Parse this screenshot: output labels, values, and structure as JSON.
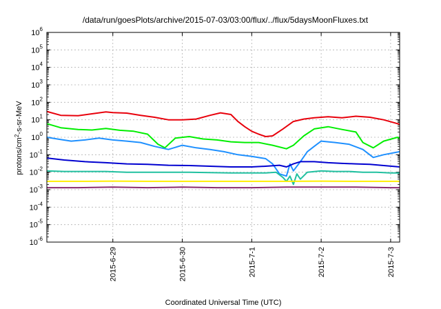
{
  "chart_data": {
    "type": "line",
    "title": "/data/run/goesPlots/archive/2015-07-03/03:00/flux/../flux/5daysMoonFluxes.txt",
    "xlabel": "Coordinated Universal Time (UTC)",
    "ylabel_parts": [
      "protons/cm",
      "2",
      "-s-sr-MeV"
    ],
    "y_scale": "log",
    "ylim_exp": [
      -6,
      6
    ],
    "y_ticks": [
      {
        "base": "10",
        "exp": "6",
        "e": 6
      },
      {
        "base": "10",
        "exp": "5",
        "e": 5
      },
      {
        "base": "10",
        "exp": "4",
        "e": 4
      },
      {
        "base": "10",
        "exp": "3",
        "e": 3
      },
      {
        "base": "10",
        "exp": "2",
        "e": 2
      },
      {
        "base": "10",
        "exp": "1",
        "e": 1
      },
      {
        "base": "10",
        "exp": "0",
        "e": 0
      },
      {
        "base": "10",
        "exp": "-1",
        "e": -1
      },
      {
        "base": "10",
        "exp": "-2",
        "e": -2
      },
      {
        "base": "10",
        "exp": "-3",
        "e": -3
      },
      {
        "base": "10",
        "exp": "-4",
        "e": -4
      },
      {
        "base": "10",
        "exp": "-5",
        "e": -5
      },
      {
        "base": "10",
        "exp": "-6",
        "e": -6
      }
    ],
    "xlim_days": [
      -0.95,
      4.13
    ],
    "x_ticks": [
      {
        "label": "2015-6-29",
        "day": 0
      },
      {
        "label": "2015-6-30",
        "day": 1
      },
      {
        "label": "2015-7-1",
        "day": 2
      },
      {
        "label": "2015-7-2",
        "day": 3
      },
      {
        "label": "2015-7-3",
        "day": 4
      }
    ],
    "grid": true,
    "series": [
      {
        "color": "#e8000b",
        "x": [
          -0.95,
          -0.75,
          -0.5,
          -0.3,
          -0.1,
          0.0,
          0.2,
          0.4,
          0.6,
          0.8,
          1.0,
          1.2,
          1.4,
          1.55,
          1.7,
          1.8,
          1.9,
          2.0,
          2.1,
          2.2,
          2.3,
          2.45,
          2.6,
          2.75,
          2.9,
          3.1,
          3.3,
          3.5,
          3.7,
          3.9,
          4.1,
          4.13
        ],
        "y": [
          30,
          18,
          17,
          22,
          28,
          26,
          24,
          18,
          14,
          10,
          10,
          11,
          18,
          25,
          20,
          8,
          4,
          2.2,
          1.5,
          1.1,
          1.2,
          3,
          8,
          11,
          13,
          15,
          13,
          16,
          14,
          10,
          6,
          5.5
        ]
      },
      {
        "color": "#00ee00",
        "x": [
          -0.95,
          -0.75,
          -0.5,
          -0.3,
          -0.1,
          0.1,
          0.3,
          0.5,
          0.65,
          0.75,
          0.9,
          1.1,
          1.3,
          1.5,
          1.7,
          1.9,
          2.1,
          2.3,
          2.5,
          2.6,
          2.75,
          2.9,
          3.1,
          3.3,
          3.5,
          3.6,
          3.75,
          3.9,
          4.1,
          4.13
        ],
        "y": [
          6,
          3.5,
          2.8,
          2.6,
          3.2,
          2.5,
          2.2,
          1.5,
          0.4,
          0.25,
          0.9,
          1.1,
          0.8,
          0.7,
          0.55,
          0.5,
          0.5,
          0.35,
          0.22,
          0.35,
          1.2,
          3,
          4,
          2.8,
          2,
          0.5,
          0.25,
          0.6,
          1.0,
          0.8
        ]
      },
      {
        "color": "#1e90ff",
        "x": [
          -0.95,
          -0.8,
          -0.6,
          -0.4,
          -0.2,
          0.0,
          0.2,
          0.4,
          0.6,
          0.8,
          1.0,
          1.2,
          1.4,
          1.6,
          1.8,
          2.0,
          2.2,
          2.3,
          2.4,
          2.5,
          2.55,
          2.6,
          2.7,
          2.8,
          2.9,
          3.0,
          3.2,
          3.4,
          3.6,
          3.75,
          3.9,
          4.13
        ],
        "y": [
          1.0,
          0.8,
          0.6,
          0.7,
          0.9,
          0.7,
          0.6,
          0.5,
          0.3,
          0.2,
          0.35,
          0.25,
          0.2,
          0.15,
          0.1,
          0.08,
          0.06,
          0.03,
          0.008,
          0.006,
          0.03,
          0.012,
          0.04,
          0.15,
          0.3,
          0.6,
          0.5,
          0.4,
          0.2,
          0.07,
          0.1,
          0.15
        ]
      },
      {
        "color": "#0000d0",
        "x": [
          -0.95,
          -0.7,
          -0.4,
          -0.1,
          0.2,
          0.5,
          0.8,
          1.1,
          1.4,
          1.7,
          2.0,
          2.2,
          2.4,
          2.5,
          2.6,
          2.7,
          2.9,
          3.1,
          3.3,
          3.5,
          3.7,
          3.9,
          4.13
        ],
        "y": [
          0.065,
          0.05,
          0.04,
          0.035,
          0.03,
          0.028,
          0.025,
          0.024,
          0.022,
          0.02,
          0.02,
          0.022,
          0.025,
          0.02,
          0.03,
          0.04,
          0.04,
          0.035,
          0.032,
          0.03,
          0.028,
          0.024,
          0.02
        ]
      },
      {
        "color": "#20c0a0",
        "x": [
          -0.95,
          -0.7,
          -0.4,
          -0.1,
          0.2,
          0.5,
          0.8,
          1.1,
          1.4,
          1.7,
          2.0,
          2.2,
          2.35,
          2.45,
          2.5,
          2.55,
          2.6,
          2.65,
          2.7,
          2.8,
          3.0,
          3.2,
          3.4,
          3.6,
          3.8,
          4.0,
          4.13
        ],
        "y": [
          0.012,
          0.011,
          0.011,
          0.011,
          0.01,
          0.01,
          0.01,
          0.01,
          0.0095,
          0.009,
          0.009,
          0.009,
          0.01,
          0.005,
          0.003,
          0.006,
          0.002,
          0.008,
          0.004,
          0.01,
          0.012,
          0.011,
          0.011,
          0.01,
          0.01,
          0.009,
          0.009
        ]
      },
      {
        "color": "#ffee00",
        "x": [
          -0.95,
          -0.5,
          0.0,
          0.5,
          1.0,
          1.5,
          2.0,
          2.5,
          3.0,
          3.5,
          4.0,
          4.13
        ],
        "y": [
          0.003,
          0.003,
          0.0031,
          0.003,
          0.003,
          0.003,
          0.003,
          0.003,
          0.0031,
          0.003,
          0.003,
          0.003
        ]
      },
      {
        "color": "#8b2a6e",
        "x": [
          -0.95,
          -0.5,
          0.0,
          0.5,
          1.0,
          1.5,
          2.0,
          2.5,
          3.0,
          3.5,
          4.0,
          4.13
        ],
        "y": [
          0.0013,
          0.0013,
          0.0014,
          0.0013,
          0.0014,
          0.0013,
          0.0013,
          0.0014,
          0.0014,
          0.0014,
          0.0013,
          0.0013
        ]
      }
    ]
  }
}
